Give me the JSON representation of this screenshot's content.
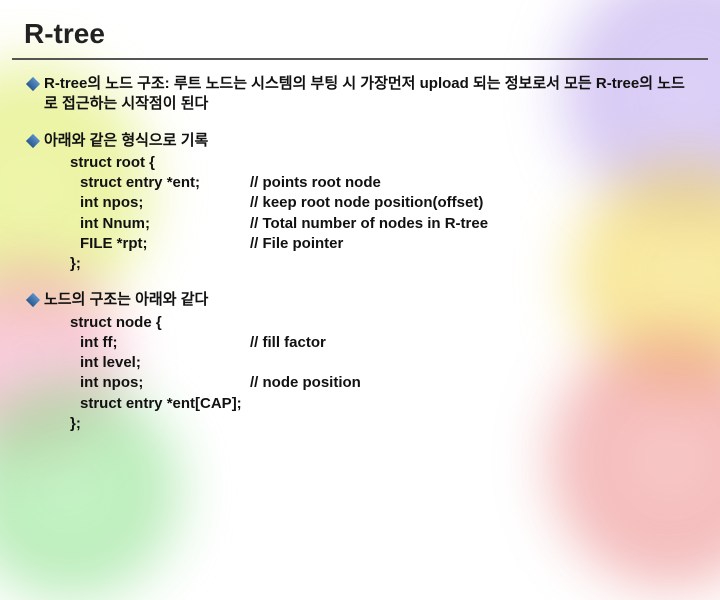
{
  "title": "R-tree",
  "bullets": {
    "b1": "R-tree의 노드 구조:  루트 노드는 시스템의 부팅 시 가장먼저 upload 되는 정보로서 모든 R-tree의 노드로 접근하는 시작점이 된다",
    "b2": "아래와 같은 형식으로 기록",
    "b3": "노드의 구조는 아래와 같다"
  },
  "code1": {
    "l0": "struct root {",
    "l1a": "struct entry *ent;",
    "l1b": "// points root node",
    "l2a": "int npos;",
    "l2b": "// keep root node position(offset)",
    "l3a": "int Nnum;",
    "l3b": "// Total number of nodes in R-tree",
    "l4a": "FILE *rpt;",
    "l4b": "// File pointer",
    "l5": "};"
  },
  "code2": {
    "l0": "struct node {",
    "l1a": "int ff;",
    "l1b": "// fill factor",
    "l2a": "int level;",
    "l2b": "",
    "l3a": "int npos;",
    "l3b": "// node position",
    "l4a": "struct entry *ent[CAP];",
    "l4b": "",
    "l5": "};"
  },
  "colors": {
    "diamond_top": "#5a8fc7",
    "diamond_bottom": "#2a5a8f",
    "text": "#111111",
    "title": "#222222",
    "underline": "#555555",
    "bg": "#ffffff"
  }
}
